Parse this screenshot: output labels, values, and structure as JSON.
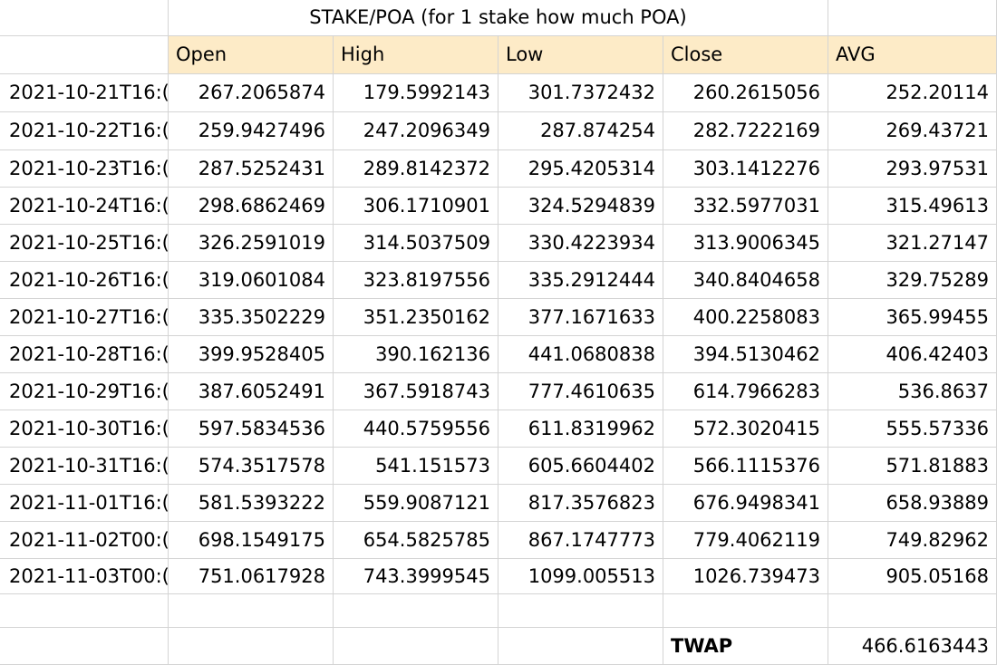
{
  "sheet": {
    "title": "STAKE/POA (for 1 stake how much POA)",
    "headers": [
      "Open",
      "High",
      "Low",
      "Close",
      "AVG"
    ],
    "rows": [
      [
        "2021-10-21T16:(",
        "267.2065874",
        "179.5992143",
        "301.7372432",
        "260.2615056",
        "252.20114"
      ],
      [
        "2021-10-22T16:(",
        "259.9427496",
        "247.2096349",
        "287.874254",
        "282.7222169",
        "269.43721"
      ],
      [
        "2021-10-23T16:(",
        "287.5252431",
        "289.8142372",
        "295.4205314",
        "303.1412276",
        "293.97531"
      ],
      [
        "2021-10-24T16:(",
        "298.6862469",
        "306.1710901",
        "324.5294839",
        "332.5977031",
        "315.49613"
      ],
      [
        "2021-10-25T16:(",
        "326.2591019",
        "314.5037509",
        "330.4223934",
        "313.9006345",
        "321.27147"
      ],
      [
        "2021-10-26T16:(",
        "319.0601084",
        "323.8197556",
        "335.2912444",
        "340.8404658",
        "329.75289"
      ],
      [
        "2021-10-27T16:(",
        "335.3502229",
        "351.2350162",
        "377.1671633",
        "400.2258083",
        "365.99455"
      ],
      [
        "2021-10-28T16:(",
        "399.9528405",
        "390.162136",
        "441.0680838",
        "394.5130462",
        "406.42403"
      ],
      [
        "2021-10-29T16:(",
        "387.6052491",
        "367.5918743",
        "777.4610635",
        "614.7966283",
        "536.8637"
      ],
      [
        "2021-10-30T16:(",
        "597.5834536",
        "440.5759556",
        "611.8319962",
        "572.3020415",
        "555.57336"
      ],
      [
        "2021-10-31T16:(",
        "574.3517578",
        "541.151573",
        "605.6604402",
        "566.1115376",
        "571.81883"
      ],
      [
        "2021-11-01T16:(",
        "581.5393222",
        "559.9087121",
        "817.3576823",
        "676.9498341",
        "658.93889"
      ],
      [
        "2021-11-02T00:(",
        "698.1549175",
        "654.5825785",
        "867.1747773",
        "779.4062119",
        "749.82962"
      ],
      [
        "2021-11-03T00:(",
        "751.0617928",
        "743.3999545",
        "1099.005513",
        "1026.739473",
        "905.05168"
      ]
    ],
    "twap_label": "TWAP",
    "twap_value": "466.6163443"
  }
}
